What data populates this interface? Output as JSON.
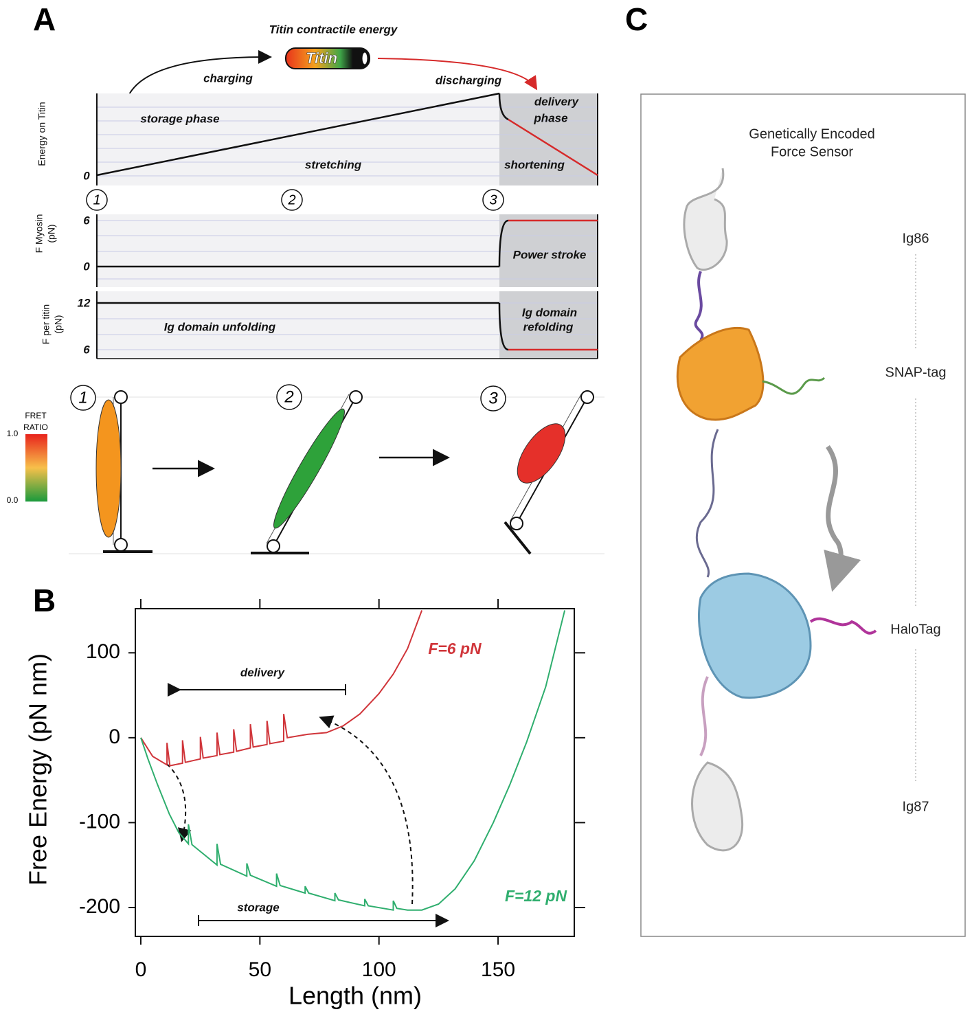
{
  "panel_a": {
    "label": "A",
    "battery_title": "Titin contractile energy",
    "battery_label": "Titin",
    "charging": "charging",
    "discharging": "discharging",
    "energy_axis_label": "Energy on Titin",
    "energy_zero": "0",
    "storage_phase": "storage phase",
    "delivery_phase": [
      "delivery",
      "phase"
    ],
    "stretching": "stretching",
    "shortening": "shortening",
    "steps": [
      "1",
      "2",
      "3"
    ],
    "myosin_axis_label": [
      "F Myosin",
      "(pN)"
    ],
    "myosin_ticks": [
      "6",
      "0"
    ],
    "power_stroke": "Power stroke",
    "titin_axis_label": [
      "F per titin",
      "(pN)"
    ],
    "titin_ticks": [
      "12",
      "6"
    ],
    "unfolding": "Ig domain unfolding",
    "refolding": [
      "Ig domain",
      "refolding"
    ],
    "fret_label": [
      "FRET",
      "RATIO"
    ],
    "fret_ticks": [
      "1.0",
      "0.0"
    ]
  },
  "chart_data": {
    "type": "line",
    "panel_label": "B",
    "x_label": "Length (nm)",
    "y_label": "Free Energy (pN nm)",
    "xlim": [
      -2.3,
      182
    ],
    "ylim": [
      -234,
      152
    ],
    "xticks": [
      0,
      50,
      100,
      150
    ],
    "yticks": [
      -200,
      -100,
      0,
      100
    ],
    "annotations": {
      "delivery": "delivery",
      "storage": "storage"
    },
    "series": [
      {
        "name": "F=6 pN",
        "color": "#d0353a",
        "x": [
          0,
          5,
          11,
          11,
          12.2,
          17.5,
          17.5,
          18.7,
          25,
          25,
          26.2,
          32,
          32,
          33.2,
          39,
          39,
          40.2,
          46,
          46,
          47.2,
          53,
          53,
          54.2,
          60,
          60,
          61.5,
          70,
          78,
          85,
          92,
          100,
          106,
          112,
          118
        ],
        "values": [
          0,
          -22,
          -32,
          -6,
          -33,
          -30,
          -3,
          -29,
          -25,
          1,
          -24,
          -21,
          6,
          -20,
          -17,
          10,
          -16,
          -12,
          16,
          -11,
          -8,
          20,
          -7,
          -4,
          28,
          0,
          4,
          6,
          14,
          28,
          52,
          75,
          105,
          150
        ]
      },
      {
        "name": "F=12 pN",
        "color": "#2fae6e",
        "x": [
          0,
          3,
          7,
          12,
          16,
          20,
          20,
          21.5,
          32,
          32,
          33.5,
          44.5,
          44.5,
          46,
          57,
          57,
          58.5,
          69,
          69,
          70.5,
          81.5,
          81.5,
          83,
          94,
          94,
          95.5,
          106,
          106,
          107.5,
          112,
          118,
          125,
          132,
          140,
          148,
          155,
          162,
          170,
          178
        ],
        "values": [
          0,
          -25,
          -55,
          -90,
          -112,
          -125,
          -102,
          -126,
          -150,
          -125,
          -149,
          -163,
          -148,
          -162,
          -175,
          -160,
          -174,
          -183,
          -175,
          -183,
          -192,
          -183,
          -191,
          -198,
          -190,
          -198,
          -203,
          -192,
          -201,
          -203,
          -203,
          -196,
          -178,
          -145,
          -100,
          -55,
          -5,
          60,
          150
        ]
      }
    ]
  },
  "panel_c": {
    "label": "C",
    "title": [
      "Genetically Encoded",
      "Force Sensor"
    ],
    "domains": [
      "Ig86",
      "SNAP-tag",
      "HaloTag",
      "Ig87"
    ]
  }
}
